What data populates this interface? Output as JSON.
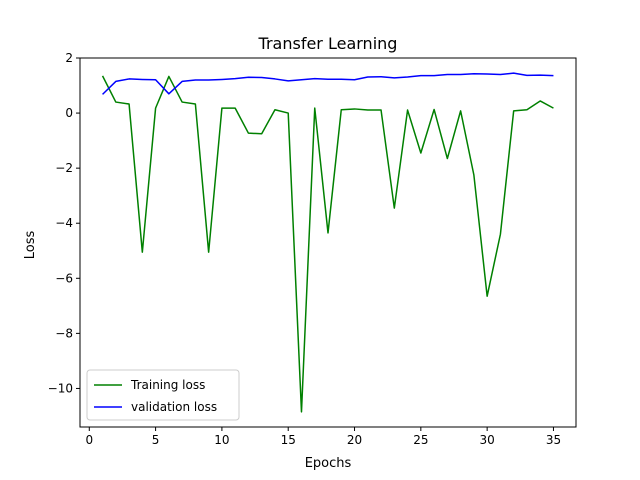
{
  "chart_data": {
    "type": "line",
    "title": "Transfer Learning",
    "xlabel": "Epochs",
    "ylabel": "Loss",
    "xlim": [
      -0.7,
      36.7
    ],
    "ylim": [
      -11.4,
      2.0
    ],
    "xticks": [
      0,
      5,
      10,
      15,
      20,
      25,
      30,
      35
    ],
    "yticks": [
      -10,
      -8,
      -6,
      -4,
      -2,
      0,
      2
    ],
    "ytick_labels": [
      "−10",
      "−8",
      "−6",
      "−4",
      "−2",
      "0",
      "2"
    ],
    "grid": false,
    "legend_position": "lower-left",
    "x": [
      1,
      2,
      3,
      4,
      5,
      6,
      7,
      8,
      9,
      10,
      11,
      12,
      13,
      14,
      15,
      16,
      17,
      18,
      19,
      20,
      21,
      22,
      23,
      24,
      25,
      26,
      27,
      28,
      29,
      30,
      31,
      32,
      33,
      34,
      35
    ],
    "series": [
      {
        "name": "Training loss",
        "color": "#008000",
        "values": [
          1.35,
          0.4,
          0.33,
          -5.05,
          0.18,
          1.33,
          0.4,
          0.33,
          -5.05,
          0.18,
          0.18,
          -0.73,
          -0.75,
          0.12,
          0.0,
          -10.85,
          0.18,
          -4.35,
          0.12,
          0.15,
          0.11,
          0.11,
          -3.45,
          0.11,
          -1.45,
          0.13,
          -1.65,
          0.08,
          -2.25,
          -6.65,
          -4.4,
          0.08,
          0.12,
          0.44,
          0.18
        ]
      },
      {
        "name": "validation loss",
        "color": "#0000ff",
        "values": [
          0.68,
          1.15,
          1.24,
          1.22,
          1.21,
          0.7,
          1.15,
          1.2,
          1.2,
          1.22,
          1.25,
          1.3,
          1.29,
          1.24,
          1.17,
          1.21,
          1.25,
          1.23,
          1.23,
          1.21,
          1.31,
          1.32,
          1.28,
          1.31,
          1.36,
          1.36,
          1.4,
          1.4,
          1.43,
          1.42,
          1.4,
          1.45,
          1.37,
          1.38,
          1.36
        ]
      }
    ]
  }
}
